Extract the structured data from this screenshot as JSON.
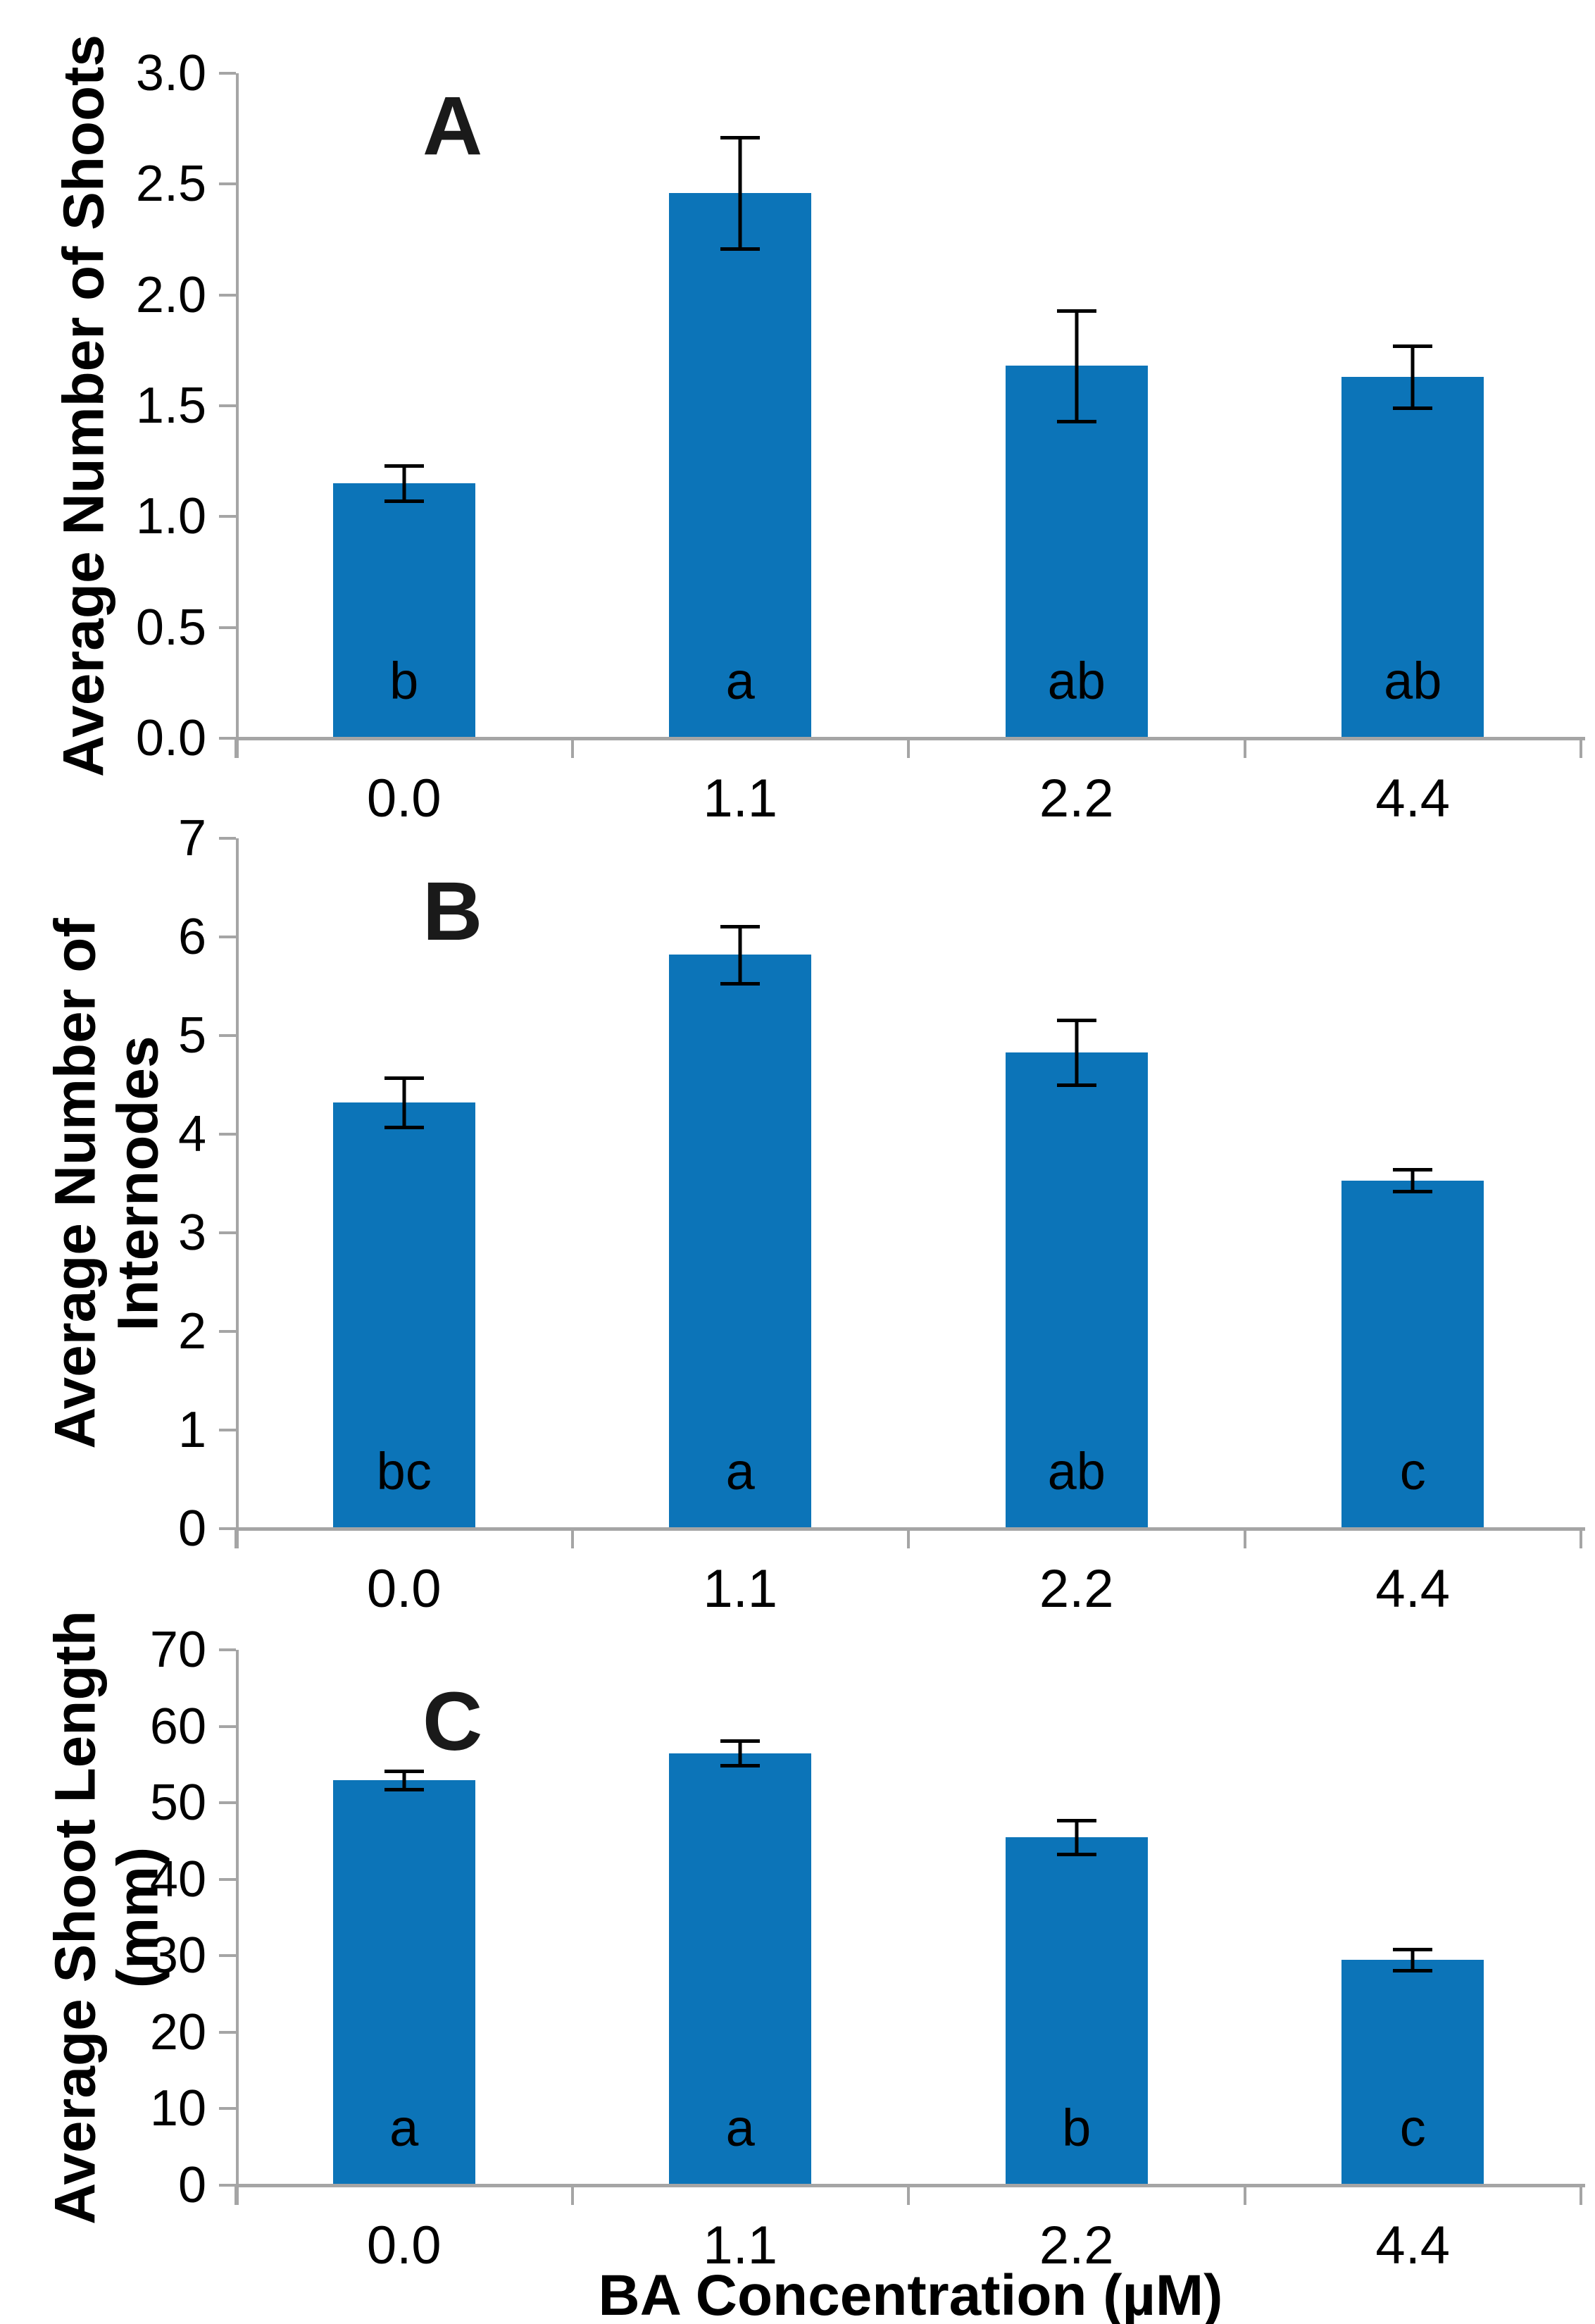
{
  "figure": {
    "x_axis_title": "BA Concentration (µM)",
    "bar_color": "#0c74b8",
    "axis_color": "#a5a5a5",
    "error_bar_color": "#000000",
    "text_color": "#000000"
  },
  "chart_data": [
    {
      "type": "bar",
      "panel_label": "A",
      "title": "",
      "xlabel": "",
      "ylabel": "Average Number of Shoots",
      "categories": [
        "0.0",
        "1.1",
        "2.2",
        "4.4"
      ],
      "values": [
        1.15,
        2.46,
        1.68,
        1.63
      ],
      "errors": [
        0.08,
        0.25,
        0.25,
        0.14
      ],
      "sig_letters": [
        "b",
        "a",
        "ab",
        "ab"
      ],
      "ylim": [
        0,
        3
      ],
      "ytick_step": 0.5,
      "ytick_decimals": 1,
      "grid": false,
      "legend": false
    },
    {
      "type": "bar",
      "panel_label": "B",
      "title": "",
      "xlabel": "",
      "ylabel": "Average Number of\nInternodes",
      "categories": [
        "0.0",
        "1.1",
        "2.2",
        "4.4"
      ],
      "values": [
        4.32,
        5.82,
        4.83,
        3.53
      ],
      "errors": [
        0.25,
        0.29,
        0.33,
        0.11
      ],
      "sig_letters": [
        "bc",
        "a",
        "ab",
        "c"
      ],
      "ylim": [
        0,
        7
      ],
      "ytick_step": 1,
      "ytick_decimals": 0,
      "grid": false,
      "legend": false
    },
    {
      "type": "bar",
      "panel_label": "C",
      "title": "",
      "xlabel": "BA Concentration (µM)",
      "ylabel": "Average Shoot Length\n(mm)",
      "categories": [
        "0.0",
        "1.1",
        "2.2",
        "4.4"
      ],
      "values": [
        53.0,
        56.5,
        45.5,
        29.5
      ],
      "errors": [
        1.2,
        1.6,
        2.2,
        1.4
      ],
      "sig_letters": [
        "a",
        "a",
        "b",
        "c"
      ],
      "ylim": [
        0,
        70
      ],
      "ytick_step": 10,
      "ytick_decimals": 0,
      "grid": false,
      "legend": false
    }
  ]
}
